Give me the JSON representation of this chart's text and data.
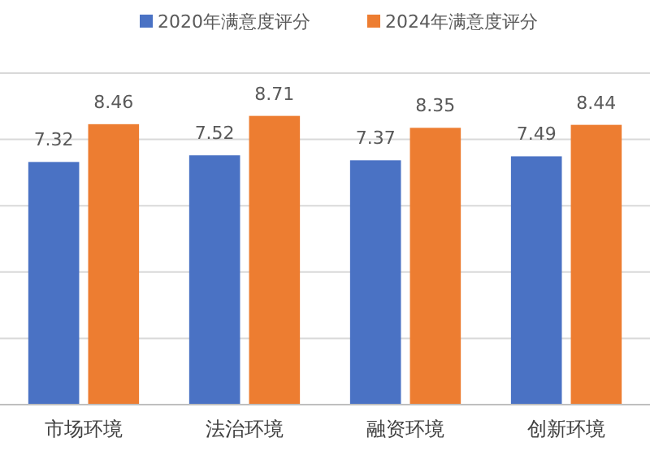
{
  "chart_data": {
    "type": "bar",
    "categories": [
      "市场环境",
      "法治环境",
      "融资环境",
      "创新环境"
    ],
    "series": [
      {
        "name": "2020年满意度评分",
        "color": "#4a72c4",
        "values": [
          7.32,
          7.52,
          7.37,
          7.49
        ]
      },
      {
        "name": "2024年满意度评分",
        "color": "#ed7d31",
        "values": [
          8.46,
          8.71,
          8.35,
          8.44
        ]
      }
    ],
    "ylim": [
      0,
      10
    ],
    "yticks": [
      {
        "value": 0,
        "label": null
      },
      {
        "value": 2,
        "label": null
      },
      {
        "value": 4,
        "label": null
      },
      {
        "value": 6,
        "label": null
      },
      {
        "value": 8,
        "label": null
      },
      {
        "value": 10,
        "label": null
      }
    ],
    "tick_labels": "x",
    "grid": "y",
    "legend": "top",
    "data_labels": true
  }
}
